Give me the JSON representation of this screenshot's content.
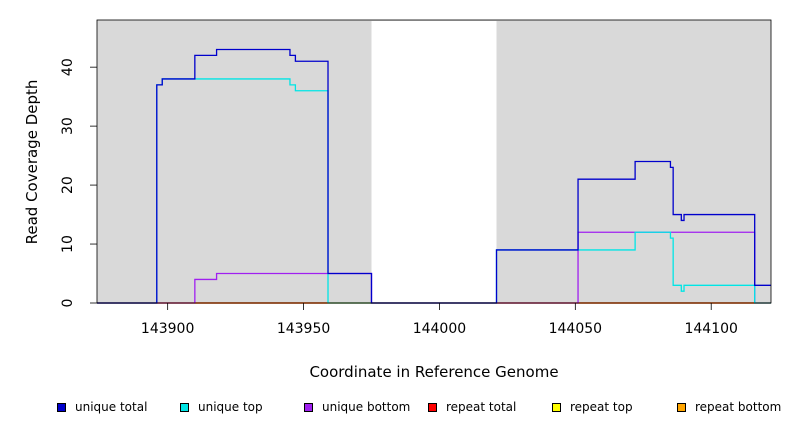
{
  "chart_data": {
    "type": "line",
    "xlabel": "Coordinate in Reference Genome",
    "ylabel": "Read Coverage Depth",
    "xlim": [
      143874,
      144122
    ],
    "ylim": [
      0,
      48
    ],
    "x_ticks": [
      143900,
      143950,
      144000,
      144050,
      144100
    ],
    "y_ticks": [
      0,
      10,
      20,
      30,
      40
    ],
    "grid": false,
    "background": "#d9d9d9",
    "unshaded_regions": [
      [
        143975,
        144021
      ]
    ],
    "series": [
      {
        "name": "unique total",
        "color": "#0000cc",
        "points": [
          [
            143874,
            0
          ],
          [
            143896,
            0
          ],
          [
            143896,
            37
          ],
          [
            143898,
            37
          ],
          [
            143898,
            38
          ],
          [
            143910,
            38
          ],
          [
            143910,
            42
          ],
          [
            143918,
            42
          ],
          [
            143918,
            43
          ],
          [
            143945,
            43
          ],
          [
            143945,
            42
          ],
          [
            143947,
            42
          ],
          [
            143947,
            41
          ],
          [
            143959,
            41
          ],
          [
            143959,
            5
          ],
          [
            143975,
            5
          ],
          [
            143975,
            0
          ],
          [
            144021,
            0
          ],
          [
            144021,
            9
          ],
          [
            144051,
            9
          ],
          [
            144051,
            21
          ],
          [
            144072,
            21
          ],
          [
            144072,
            24
          ],
          [
            144085,
            24
          ],
          [
            144085,
            23
          ],
          [
            144086,
            23
          ],
          [
            144086,
            15
          ],
          [
            144089,
            15
          ],
          [
            144089,
            14
          ],
          [
            144090,
            14
          ],
          [
            144090,
            15
          ],
          [
            144116,
            15
          ],
          [
            144116,
            3
          ],
          [
            144122,
            3
          ]
        ]
      },
      {
        "name": "unique top",
        "color": "#00e5e5",
        "points": [
          [
            143874,
            0
          ],
          [
            143896,
            0
          ],
          [
            143896,
            37
          ],
          [
            143898,
            37
          ],
          [
            143898,
            38
          ],
          [
            143945,
            38
          ],
          [
            143945,
            37
          ],
          [
            143947,
            37
          ],
          [
            143947,
            36
          ],
          [
            143959,
            36
          ],
          [
            143959,
            0
          ],
          [
            144021,
            0
          ],
          [
            144021,
            9
          ],
          [
            144072,
            9
          ],
          [
            144072,
            12
          ],
          [
            144085,
            12
          ],
          [
            144085,
            11
          ],
          [
            144086,
            11
          ],
          [
            144086,
            3
          ],
          [
            144089,
            3
          ],
          [
            144089,
            2
          ],
          [
            144090,
            2
          ],
          [
            144090,
            3
          ],
          [
            144116,
            3
          ],
          [
            144116,
            0
          ],
          [
            144122,
            0
          ]
        ]
      },
      {
        "name": "unique bottom",
        "color": "#a020f0",
        "points": [
          [
            143874,
            0
          ],
          [
            143910,
            0
          ],
          [
            143910,
            4
          ],
          [
            143918,
            4
          ],
          [
            143918,
            5
          ],
          [
            143975,
            5
          ],
          [
            143975,
            0
          ],
          [
            144051,
            0
          ],
          [
            144051,
            12
          ],
          [
            144116,
            12
          ],
          [
            144116,
            0
          ],
          [
            144122,
            0
          ]
        ]
      },
      {
        "name": "repeat total",
        "color": "#ff0000",
        "points": [
          [
            143874,
            0
          ],
          [
            144122,
            0
          ]
        ]
      },
      {
        "name": "repeat top",
        "color": "#ffff00",
        "points": [
          [
            143874,
            0
          ],
          [
            144122,
            0
          ]
        ]
      },
      {
        "name": "repeat bottom",
        "color": "#ffa500",
        "points": [
          [
            143874,
            0
          ],
          [
            144122,
            0
          ]
        ]
      }
    ]
  }
}
